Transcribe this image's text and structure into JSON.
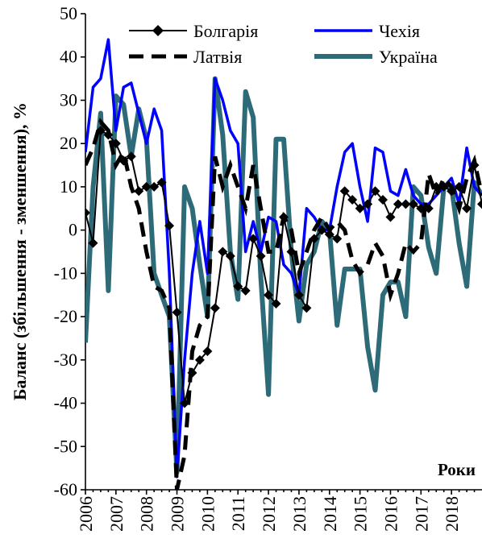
{
  "chart_data": {
    "type": "line",
    "ylabel": "Баланс (збільшення - зменшення), %",
    "xlabel": "Роки",
    "ylim": [
      -60,
      50
    ],
    "yticks": [
      50,
      40,
      30,
      20,
      10,
      0,
      -10,
      -20,
      -30,
      -40,
      -50,
      -60
    ],
    "xlim": [
      2006,
      2019.0
    ],
    "xticks": [
      "2006",
      "2007",
      "2008",
      "2009",
      "2010",
      "2011",
      "2012",
      "2013",
      "2014",
      "2015",
      "2016",
      "2017",
      "2018"
    ],
    "legend": {
      "position": "top"
    },
    "series": [
      {
        "name": "Болгарія",
        "color": "#000000",
        "style": "solid-diamond",
        "x": [
          2006.0,
          2006.25,
          2006.5,
          2006.75,
          2007.0,
          2007.25,
          2007.5,
          2007.75,
          2008.0,
          2008.25,
          2008.5,
          2008.75,
          2009.0,
          2009.25,
          2009.5,
          2009.75,
          2010.0,
          2010.25,
          2010.5,
          2010.75,
          2011.0,
          2011.25,
          2011.5,
          2011.75,
          2012.0,
          2012.25,
          2012.5,
          2012.75,
          2013.0,
          2013.25,
          2013.5,
          2013.75,
          2014.0,
          2014.25,
          2014.5,
          2014.75,
          2015.0,
          2015.25,
          2015.5,
          2015.75,
          2016.0,
          2016.25,
          2016.5,
          2016.75,
          2017.0,
          2017.25,
          2017.5,
          2017.75,
          2018.0,
          2018.25,
          2018.5,
          2018.75,
          2019.0
        ],
        "values": [
          4,
          -3,
          23,
          22,
          20,
          16,
          17,
          9,
          10,
          10,
          11,
          1,
          -19,
          -40,
          -33,
          -30,
          -28,
          -18,
          -5,
          -6,
          -13,
          -14,
          -2,
          -6,
          -15,
          -17,
          3,
          -5,
          -15,
          -18,
          -2,
          0,
          -1,
          -2,
          9,
          7,
          5,
          6,
          9,
          7,
          3,
          6,
          6,
          6,
          5,
          5,
          10,
          10,
          9,
          10,
          5,
          15,
          6
        ]
      },
      {
        "name": "Чехія",
        "color": "#0000ff",
        "style": "solid",
        "x": [
          2006.0,
          2006.25,
          2006.5,
          2006.75,
          2007.0,
          2007.25,
          2007.5,
          2007.75,
          2008.0,
          2008.25,
          2008.5,
          2008.75,
          2009.0,
          2009.25,
          2009.5,
          2009.75,
          2010.0,
          2010.25,
          2010.5,
          2010.75,
          2011.0,
          2011.25,
          2011.5,
          2011.75,
          2012.0,
          2012.25,
          2012.5,
          2012.75,
          2013.0,
          2013.25,
          2013.5,
          2013.75,
          2014.0,
          2014.25,
          2014.5,
          2014.75,
          2015.0,
          2015.25,
          2015.5,
          2015.75,
          2016.0,
          2016.25,
          2016.5,
          2016.75,
          2017.0,
          2017.25,
          2017.5,
          2017.75,
          2018.0,
          2018.25,
          2018.5,
          2018.75,
          2019.0
        ],
        "values": [
          18,
          33,
          35,
          44,
          23,
          33,
          34,
          27,
          20,
          28,
          23,
          -10,
          -57,
          -30,
          -10,
          2,
          -10,
          35,
          30,
          23,
          20,
          -5,
          2,
          -5,
          3,
          2,
          -8,
          -10,
          -15,
          5,
          3,
          0,
          0,
          10,
          18,
          20,
          10,
          2,
          19,
          18,
          9,
          8,
          14,
          8,
          6,
          6,
          8,
          10,
          12,
          6,
          19,
          10,
          8
        ]
      },
      {
        "name": "Латвія",
        "color": "#000000",
        "style": "dashed",
        "x": [
          2006.0,
          2006.25,
          2006.5,
          2006.75,
          2007.0,
          2007.25,
          2007.5,
          2007.75,
          2008.0,
          2008.25,
          2008.5,
          2008.75,
          2009.0,
          2009.25,
          2009.5,
          2009.75,
          2010.0,
          2010.25,
          2010.5,
          2010.75,
          2011.0,
          2011.25,
          2011.5,
          2011.75,
          2012.0,
          2012.25,
          2012.5,
          2012.75,
          2013.0,
          2013.25,
          2013.5,
          2013.75,
          2014.0,
          2014.25,
          2014.5,
          2014.75,
          2015.0,
          2015.25,
          2015.5,
          2015.75,
          2016.0,
          2016.25,
          2016.5,
          2016.75,
          2017.0,
          2017.25,
          2017.5,
          2017.75,
          2018.0,
          2018.25,
          2018.5,
          2018.75,
          2019.0
        ],
        "values": [
          15,
          19,
          25,
          23,
          15,
          18,
          10,
          5,
          -5,
          -13,
          -14,
          -18,
          -60,
          -52,
          -28,
          -22,
          -20,
          17,
          10,
          15,
          10,
          5,
          15,
          5,
          -5,
          -5,
          3,
          0,
          -10,
          -5,
          0,
          3,
          0,
          2,
          0,
          -7,
          -10,
          -8,
          -3,
          -6,
          -15,
          -10,
          -3,
          -5,
          -3,
          13,
          8,
          12,
          10,
          5,
          12,
          16,
          8
        ]
      },
      {
        "name": "Україна",
        "color": "#2e6b78",
        "style": "solid-thick",
        "x": [
          2006.0,
          2006.25,
          2006.5,
          2006.75,
          2007.0,
          2007.25,
          2007.5,
          2007.75,
          2008.0,
          2008.25,
          2008.5,
          2008.75,
          2009.0,
          2009.25,
          2009.5,
          2009.75,
          2010.0,
          2010.25,
          2010.5,
          2010.75,
          2011.0,
          2011.25,
          2011.5,
          2011.75,
          2012.0,
          2012.25,
          2012.5,
          2012.75,
          2013.0,
          2013.25,
          2013.5,
          2013.75,
          2014.0,
          2014.25,
          2014.5,
          2014.75,
          2015.0,
          2015.25,
          2015.5,
          2015.75,
          2016.0,
          2016.25,
          2016.5,
          2016.75,
          2017.0,
          2017.25,
          2017.5,
          2017.75,
          2018.0,
          2018.25,
          2018.5,
          2018.75,
          2019.0
        ],
        "values": [
          -26,
          10,
          27,
          -14,
          31,
          29,
          17,
          28,
          21,
          -10,
          -15,
          -20,
          -56,
          10,
          5,
          -8,
          -20,
          35,
          22,
          -5,
          -16,
          32,
          26,
          -11,
          -38,
          21,
          21,
          -5,
          -21,
          -8,
          -5,
          2,
          0,
          -22,
          -9,
          -9,
          -9,
          -27,
          -37,
          -15,
          -12,
          -12,
          -20,
          10,
          8,
          -4,
          -10,
          10,
          10,
          -3,
          -13,
          11,
          8
        ]
      }
    ]
  }
}
